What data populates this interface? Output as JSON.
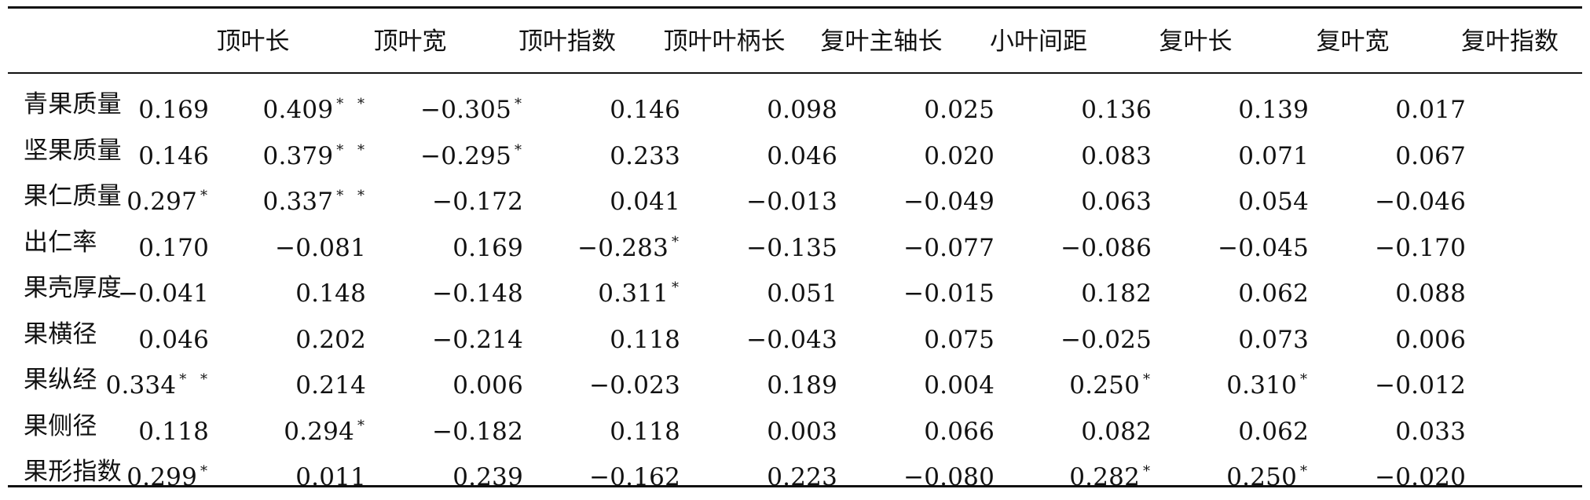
{
  "table": {
    "corner": "",
    "columns": [
      "顶叶长",
      "顶叶宽",
      "顶叶指数",
      "顶叶叶柄长",
      "复叶主轴长",
      "小叶间距",
      "复叶长",
      "复叶宽",
      "复叶指数"
    ],
    "rows": [
      {
        "label": "青果质量",
        "cells": [
          {
            "v": "0.169",
            "s": ""
          },
          {
            "v": "0.409",
            "s": "* *"
          },
          {
            "v": "−0.305",
            "s": "*"
          },
          {
            "v": "0.146",
            "s": ""
          },
          {
            "v": "0.098",
            "s": ""
          },
          {
            "v": "0.025",
            "s": ""
          },
          {
            "v": "0.136",
            "s": ""
          },
          {
            "v": "0.139",
            "s": ""
          },
          {
            "v": "0.017",
            "s": ""
          }
        ]
      },
      {
        "label": "坚果质量",
        "cells": [
          {
            "v": "0.146",
            "s": ""
          },
          {
            "v": "0.379",
            "s": "* *"
          },
          {
            "v": "−0.295",
            "s": "*"
          },
          {
            "v": "0.233",
            "s": ""
          },
          {
            "v": "0.046",
            "s": ""
          },
          {
            "v": "0.020",
            "s": ""
          },
          {
            "v": "0.083",
            "s": ""
          },
          {
            "v": "0.071",
            "s": ""
          },
          {
            "v": "0.067",
            "s": ""
          }
        ]
      },
      {
        "label": "果仁质量",
        "cells": [
          {
            "v": "0.297",
            "s": "*"
          },
          {
            "v": "0.337",
            "s": "* *"
          },
          {
            "v": "−0.172",
            "s": ""
          },
          {
            "v": "0.041",
            "s": ""
          },
          {
            "v": "−0.013",
            "s": ""
          },
          {
            "v": "−0.049",
            "s": ""
          },
          {
            "v": "0.063",
            "s": ""
          },
          {
            "v": "0.054",
            "s": ""
          },
          {
            "v": "−0.046",
            "s": ""
          }
        ]
      },
      {
        "label": "出仁率",
        "cells": [
          {
            "v": "0.170",
            "s": ""
          },
          {
            "v": "−0.081",
            "s": ""
          },
          {
            "v": "0.169",
            "s": ""
          },
          {
            "v": "−0.283",
            "s": "*"
          },
          {
            "v": "−0.135",
            "s": ""
          },
          {
            "v": "−0.077",
            "s": ""
          },
          {
            "v": "−0.086",
            "s": ""
          },
          {
            "v": "−0.045",
            "s": ""
          },
          {
            "v": "−0.170",
            "s": ""
          }
        ]
      },
      {
        "label": "果壳厚度",
        "cells": [
          {
            "v": "−0.041",
            "s": ""
          },
          {
            "v": "0.148",
            "s": ""
          },
          {
            "v": "−0.148",
            "s": ""
          },
          {
            "v": "0.311",
            "s": "*"
          },
          {
            "v": "0.051",
            "s": ""
          },
          {
            "v": "−0.015",
            "s": ""
          },
          {
            "v": "0.182",
            "s": ""
          },
          {
            "v": "0.062",
            "s": ""
          },
          {
            "v": "0.088",
            "s": ""
          }
        ]
      },
      {
        "label": "果横径",
        "cells": [
          {
            "v": "0.046",
            "s": ""
          },
          {
            "v": "0.202",
            "s": ""
          },
          {
            "v": "−0.214",
            "s": ""
          },
          {
            "v": "0.118",
            "s": ""
          },
          {
            "v": "−0.043",
            "s": ""
          },
          {
            "v": "0.075",
            "s": ""
          },
          {
            "v": "−0.025",
            "s": ""
          },
          {
            "v": "0.073",
            "s": ""
          },
          {
            "v": "0.006",
            "s": ""
          }
        ]
      },
      {
        "label": "果纵经",
        "cells": [
          {
            "v": "0.334",
            "s": "* *"
          },
          {
            "v": "0.214",
            "s": ""
          },
          {
            "v": "0.006",
            "s": ""
          },
          {
            "v": "−0.023",
            "s": ""
          },
          {
            "v": "0.189",
            "s": ""
          },
          {
            "v": "0.004",
            "s": ""
          },
          {
            "v": "0.250",
            "s": "*"
          },
          {
            "v": "0.310",
            "s": "*"
          },
          {
            "v": "−0.012",
            "s": ""
          }
        ]
      },
      {
        "label": "果侧径",
        "cells": [
          {
            "v": "0.118",
            "s": ""
          },
          {
            "v": "0.294",
            "s": "*"
          },
          {
            "v": "−0.182",
            "s": ""
          },
          {
            "v": "0.118",
            "s": ""
          },
          {
            "v": "0.003",
            "s": ""
          },
          {
            "v": "0.066",
            "s": ""
          },
          {
            "v": "0.082",
            "s": ""
          },
          {
            "v": "0.062",
            "s": ""
          },
          {
            "v": "0.033",
            "s": ""
          }
        ]
      },
      {
        "label": "果形指数",
        "cells": [
          {
            "v": "0.299",
            "s": "*"
          },
          {
            "v": "0.011",
            "s": ""
          },
          {
            "v": "0.239",
            "s": ""
          },
          {
            "v": "−0.162",
            "s": ""
          },
          {
            "v": "0.223",
            "s": ""
          },
          {
            "v": "−0.080",
            "s": ""
          },
          {
            "v": "0.282",
            "s": "*"
          },
          {
            "v": "0.250",
            "s": "*"
          },
          {
            "v": "−0.020",
            "s": ""
          }
        ]
      }
    ]
  }
}
